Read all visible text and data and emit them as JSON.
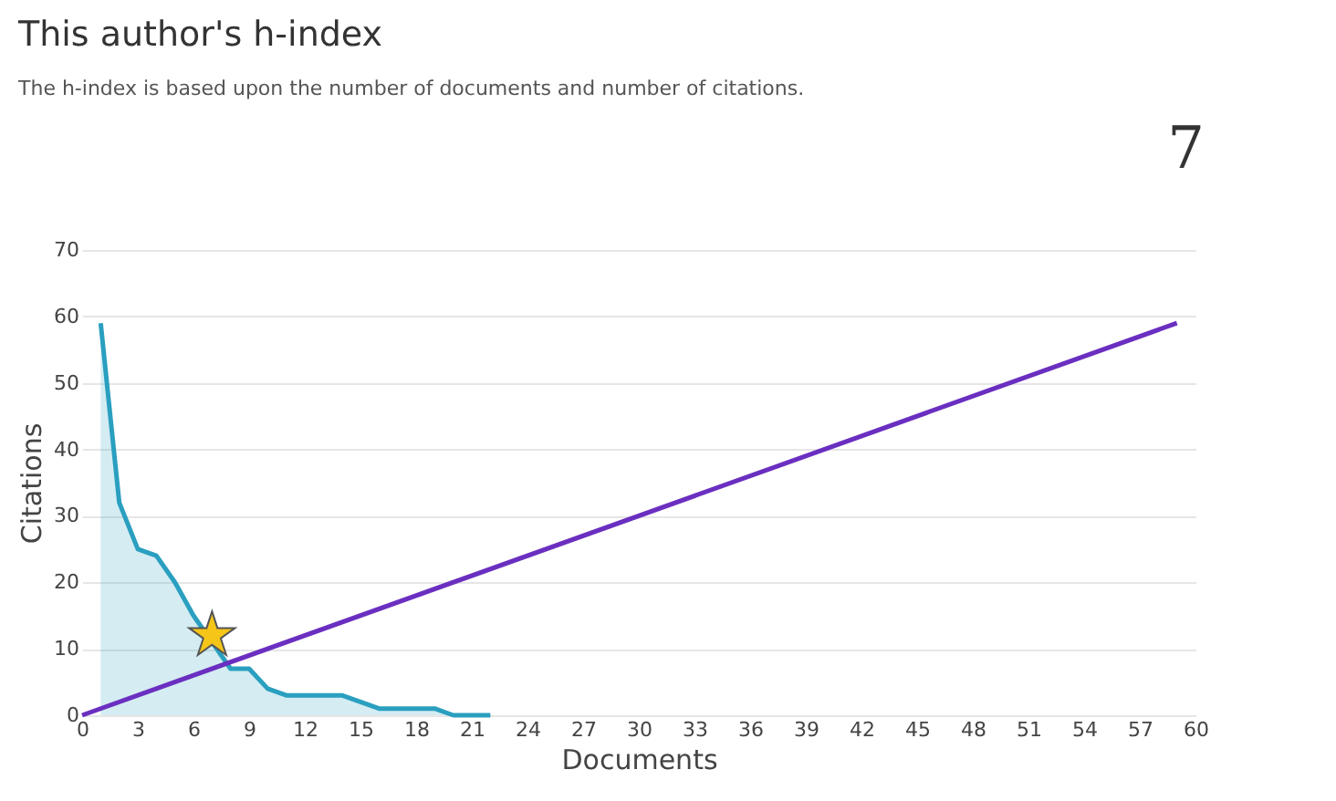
{
  "chart_data": {
    "type": "area",
    "title": "This author's h-index",
    "subtitle": "The h-index is based upon the number of documents and number of citations.",
    "xlabel": "Documents",
    "ylabel": "Citations",
    "annotations": [
      "7"
    ],
    "series": [
      {
        "color": "#2a9fc0",
        "x": [
          1,
          2,
          3,
          4,
          5,
          6,
          7,
          8,
          9,
          10,
          11,
          12,
          13,
          14,
          15,
          16,
          17,
          18,
          19,
          20,
          21,
          22
        ],
        "values": [
          59,
          32,
          25,
          24,
          20,
          15,
          11,
          7,
          7,
          4,
          3,
          3,
          3,
          3,
          2,
          1,
          1,
          1,
          1,
          0,
          0,
          0
        ]
      },
      {
        "type": "line",
        "color": "#6a2fc0",
        "x": [
          0,
          59
        ],
        "values": [
          0,
          59
        ]
      },
      {
        "type": "scatter",
        "color": "#f5c518",
        "marker": "star",
        "x": [
          7
        ],
        "values": [
          12
        ]
      }
    ],
    "xlim": [
      0,
      60
    ],
    "xticks": [
      0,
      3,
      6,
      9,
      12,
      15,
      18,
      21,
      24,
      27,
      30,
      33,
      36,
      39,
      42,
      45,
      48,
      51,
      54,
      57,
      60
    ],
    "ylim": [
      0,
      70
    ],
    "yticks": [
      0,
      10,
      20,
      30,
      40,
      50,
      60,
      70
    ],
    "grid": "y"
  }
}
